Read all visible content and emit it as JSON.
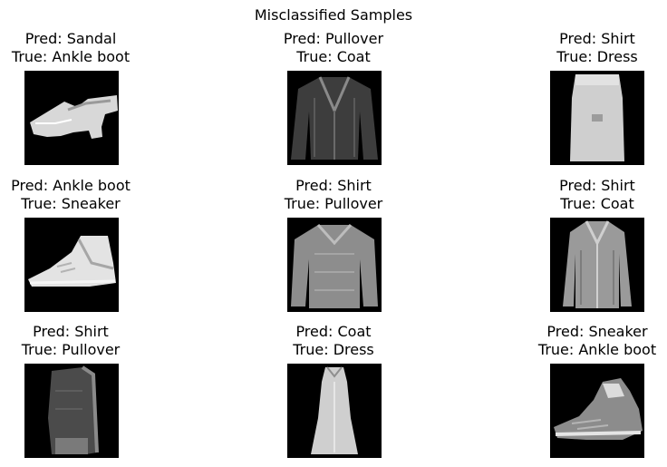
{
  "figure": {
    "title": "Misclassified Samples",
    "samples": [
      {
        "pred": "Pred: Sandal",
        "true": "True: Ankle boot",
        "icon": "ankle-boot-image"
      },
      {
        "pred": "Pred: Pullover",
        "true": "True: Coat",
        "icon": "coat-image"
      },
      {
        "pred": "Pred: Shirt",
        "true": "True: Dress",
        "icon": "dress-image"
      },
      {
        "pred": "Pred: Ankle boot",
        "true": "True: Sneaker",
        "icon": "sneaker-image"
      },
      {
        "pred": "Pred: Shirt",
        "true": "True: Pullover",
        "icon": "pullover-image"
      },
      {
        "pred": "Pred: Shirt",
        "true": "True: Coat",
        "icon": "coat-image"
      },
      {
        "pred": "Pred: Shirt",
        "true": "True: Pullover",
        "icon": "pullover-image"
      },
      {
        "pred": "Pred: Coat",
        "true": "True: Dress",
        "icon": "dress-image"
      },
      {
        "pred": "Pred: Sneaker",
        "true": "True: Ankle boot",
        "icon": "ankle-boot-image"
      }
    ]
  },
  "colors": {
    "background": "#ffffff",
    "image_background": "#000000",
    "text": "#000000"
  }
}
